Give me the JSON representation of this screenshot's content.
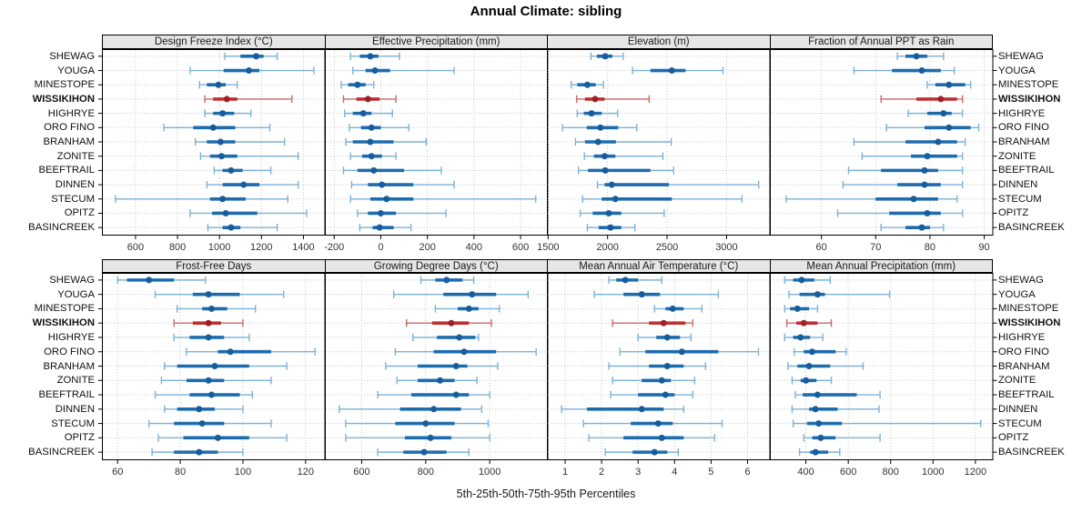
{
  "title": "Annual Climate: sibling",
  "chart_data": {
    "type": "dotplot",
    "title": "Annual Climate: sibling",
    "caption": "5th-25th-50th-75th-95th Percentiles",
    "percentiles": [
      5,
      25,
      50,
      75,
      95
    ],
    "sites": [
      "SHEWAG",
      "YOUGA",
      "MINESTOPE",
      "WISSIKIHON",
      "HIGHRYE",
      "ORO FINO",
      "BRANHAM",
      "ZONITE",
      "BEEFTRAIL",
      "DINNEN",
      "STECUM",
      "OPITZ",
      "BASINCREEK"
    ],
    "highlight_site": "WISSIKIHON",
    "legend_position": "none",
    "grid": "dotted",
    "colors": {
      "blue": "#1e6cae",
      "blue_light": "#7eb1d5",
      "blue_dot": "#175d9d",
      "red": "#c02f31",
      "red_light": "#c9686b",
      "red_dot": "#9c2127",
      "strip_bg": "#e6e6e6",
      "grid": "#c8c8c8",
      "tick_text": "#333333"
    },
    "panels": [
      {
        "title": "Design Freeze Index (°C)",
        "xlim": [
          440,
          1500
        ],
        "ticks": [
          600,
          800,
          1000,
          1200,
          1400
        ],
        "values": [
          [
            1025,
            1100,
            1175,
            1210,
            1275
          ],
          [
            860,
            1020,
            1140,
            1190,
            1450
          ],
          [
            905,
            940,
            995,
            1030,
            1085
          ],
          [
            930,
            970,
            1035,
            1085,
            1345
          ],
          [
            930,
            970,
            1015,
            1070,
            1150
          ],
          [
            735,
            875,
            970,
            1075,
            1240
          ],
          [
            885,
            940,
            1005,
            1075,
            1310
          ],
          [
            910,
            955,
            1010,
            1085,
            1375
          ],
          [
            975,
            1015,
            1055,
            1110,
            1245
          ],
          [
            940,
            1015,
            1115,
            1190,
            1375
          ],
          [
            505,
            955,
            1015,
            1125,
            1325
          ],
          [
            860,
            965,
            1030,
            1180,
            1415
          ],
          [
            945,
            1015,
            1055,
            1100,
            1275
          ]
        ]
      },
      {
        "title": "Effective Precipitation (mm)",
        "xlim": [
          -240,
          715
        ],
        "ticks": [
          -200,
          0,
          200,
          400,
          600
        ],
        "values": [
          [
            -130,
            -90,
            -45,
            -10,
            80
          ],
          [
            -120,
            -65,
            -25,
            40,
            315
          ],
          [
            -170,
            -140,
            -100,
            -65,
            -30
          ],
          [
            -160,
            -105,
            -55,
            -5,
            65
          ],
          [
            -155,
            -120,
            -75,
            -40,
            50
          ],
          [
            -135,
            -85,
            -40,
            0,
            120
          ],
          [
            -150,
            -120,
            -45,
            55,
            195
          ],
          [
            -130,
            -80,
            -40,
            5,
            65
          ],
          [
            -160,
            -100,
            -30,
            100,
            260
          ],
          [
            -125,
            -55,
            5,
            140,
            315
          ],
          [
            -130,
            -45,
            25,
            140,
            665
          ],
          [
            -100,
            -55,
            0,
            65,
            280
          ],
          [
            -90,
            -35,
            -5,
            55,
            130
          ]
        ]
      },
      {
        "title": "Elevation (m)",
        "xlim": [
          1490,
          3360
        ],
        "ticks": [
          1500,
          2000,
          2500,
          3000
        ],
        "values": [
          [
            1860,
            1910,
            1980,
            2040,
            2130
          ],
          [
            2210,
            2360,
            2540,
            2655,
            2970
          ],
          [
            1695,
            1745,
            1830,
            1900,
            1965
          ],
          [
            1740,
            1810,
            1895,
            1975,
            2350
          ],
          [
            1745,
            1800,
            1865,
            1950,
            2085
          ],
          [
            1620,
            1825,
            1940,
            2090,
            2245
          ],
          [
            1730,
            1810,
            1920,
            2070,
            2535
          ],
          [
            1805,
            1885,
            1975,
            2065,
            2465
          ],
          [
            1755,
            1835,
            1980,
            2360,
            2555
          ],
          [
            1915,
            1975,
            2035,
            2515,
            3270
          ],
          [
            1790,
            1950,
            2065,
            2540,
            3130
          ],
          [
            1770,
            1875,
            2010,
            2115,
            2475
          ],
          [
            1830,
            1925,
            2025,
            2115,
            2230
          ]
        ]
      },
      {
        "title": "Fraction of Annual PPT as Rain",
        "xlim": [
          50.5,
          91.5
        ],
        "ticks": [
          60,
          70,
          80,
          90
        ],
        "values": [
          [
            74,
            75.5,
            77.5,
            79.5,
            82.5
          ],
          [
            66,
            73,
            78.5,
            82,
            84.5
          ],
          [
            79.5,
            81,
            83.5,
            86.5,
            87.5
          ],
          [
            71,
            77.5,
            82,
            85,
            86
          ],
          [
            76,
            79.5,
            82.5,
            84,
            86
          ],
          [
            72,
            79,
            83.5,
            87.5,
            89
          ],
          [
            66,
            75.5,
            81.5,
            85,
            86.5
          ],
          [
            67.5,
            76.5,
            79.5,
            85,
            86
          ],
          [
            65,
            71,
            79,
            81.5,
            86
          ],
          [
            64,
            74,
            79,
            82,
            86
          ],
          [
            53.5,
            70,
            77,
            81.5,
            85
          ],
          [
            63,
            72.5,
            79.5,
            82,
            86
          ],
          [
            71,
            75.5,
            78.5,
            80,
            82.5
          ]
        ]
      },
      {
        "title": "Frost-Free Days",
        "xlim": [
          55,
          126
        ],
        "ticks": [
          60,
          80,
          100,
          120
        ],
        "values": [
          [
            60,
            63,
            70,
            78,
            88
          ],
          [
            72,
            84,
            89,
            99,
            113
          ],
          [
            79,
            87,
            90,
            95,
            104
          ],
          [
            78,
            84,
            89,
            93,
            100
          ],
          [
            78,
            83,
            89,
            94,
            102
          ],
          [
            82,
            92,
            96,
            109,
            123
          ],
          [
            75,
            79,
            91,
            102,
            114
          ],
          [
            74,
            82,
            89,
            94,
            109
          ],
          [
            72,
            83,
            90,
            99,
            103
          ],
          [
            75,
            79,
            86,
            91,
            100
          ],
          [
            70,
            78,
            87,
            94,
            109
          ],
          [
            73,
            81,
            92,
            102,
            114
          ],
          [
            71,
            78,
            86,
            92,
            100
          ]
        ]
      },
      {
        "title": "Growing Degree Days (°C)",
        "xlim": [
          485,
          1180
        ],
        "ticks": [
          600,
          800,
          1000
        ],
        "values": [
          [
            785,
            830,
            865,
            915,
            950
          ],
          [
            700,
            855,
            945,
            1020,
            1120
          ],
          [
            830,
            900,
            935,
            965,
            1030
          ],
          [
            740,
            820,
            880,
            935,
            1005
          ],
          [
            760,
            835,
            905,
            955,
            965
          ],
          [
            705,
            825,
            920,
            1020,
            1145
          ],
          [
            675,
            775,
            895,
            930,
            1025
          ],
          [
            710,
            775,
            845,
            890,
            960
          ],
          [
            650,
            755,
            895,
            935,
            1000
          ],
          [
            530,
            720,
            825,
            910,
            975
          ],
          [
            550,
            705,
            800,
            890,
            995
          ],
          [
            550,
            735,
            815,
            880,
            1000
          ],
          [
            650,
            730,
            795,
            865,
            935
          ]
        ]
      },
      {
        "title": "Mean Annual Air Temperature (°C)",
        "xlim": [
          0.5,
          6.6
        ],
        "ticks": [
          1,
          2,
          3,
          4,
          5,
          6
        ],
        "values": [
          [
            2.2,
            2.4,
            2.65,
            3.0,
            3.65
          ],
          [
            1.8,
            2.6,
            3.1,
            3.6,
            5.2
          ],
          [
            3.45,
            3.75,
            3.95,
            4.25,
            4.75
          ],
          [
            2.3,
            3.3,
            3.7,
            4.3,
            4.5
          ],
          [
            3.0,
            3.5,
            3.8,
            4.15,
            4.45
          ],
          [
            2.5,
            3.2,
            4.2,
            5.2,
            6.3
          ],
          [
            2.2,
            3.3,
            3.8,
            4.25,
            4.85
          ],
          [
            2.3,
            3.1,
            3.65,
            3.9,
            4.55
          ],
          [
            2.25,
            3.0,
            3.75,
            4.0,
            4.5
          ],
          [
            0.9,
            1.6,
            3.1,
            3.7,
            4.25
          ],
          [
            1.5,
            2.8,
            3.55,
            3.95,
            5.3
          ],
          [
            1.65,
            2.6,
            3.65,
            4.25,
            5.1
          ],
          [
            2.1,
            2.85,
            3.45,
            3.8,
            4.1
          ]
        ]
      },
      {
        "title": "Mean Annual Precipitation (mm)",
        "xlim": [
          230,
          1280
        ],
        "ticks": [
          400,
          600,
          800,
          1000,
          1200
        ],
        "values": [
          [
            300,
            340,
            380,
            440,
            515
          ],
          [
            320,
            370,
            455,
            490,
            795
          ],
          [
            300,
            325,
            360,
            415,
            455
          ],
          [
            310,
            355,
            390,
            455,
            520
          ],
          [
            300,
            340,
            375,
            420,
            480
          ],
          [
            345,
            390,
            430,
            540,
            590
          ],
          [
            315,
            360,
            415,
            515,
            670
          ],
          [
            335,
            375,
            400,
            450,
            520
          ],
          [
            350,
            385,
            455,
            640,
            750
          ],
          [
            335,
            415,
            445,
            550,
            745
          ],
          [
            340,
            405,
            460,
            570,
            1225
          ],
          [
            390,
            430,
            470,
            540,
            750
          ],
          [
            370,
            420,
            445,
            505,
            560
          ]
        ]
      }
    ]
  }
}
